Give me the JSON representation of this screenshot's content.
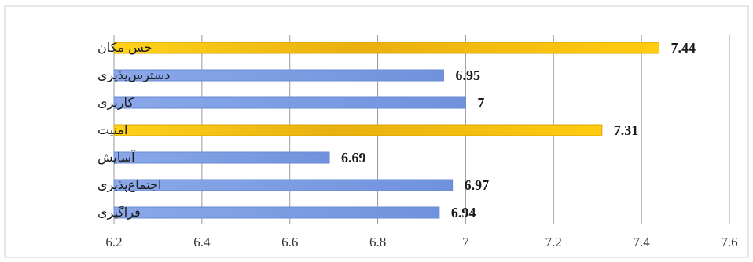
{
  "colors": {
    "highlight": "#f5c518",
    "normal": "#7e9ee0",
    "grid": "#9a9a9a"
  },
  "chart_data": {
    "type": "bar",
    "orientation": "horizontal",
    "categories": [
      "حس مکان",
      "دسترس‌پذیری",
      "کاربری",
      "امنیت",
      "آسایش",
      "اجتماع‌پذیری",
      "فراگیری"
    ],
    "values": [
      7.44,
      6.95,
      7,
      7.31,
      6.69,
      6.97,
      6.94
    ],
    "value_labels": [
      "7.44",
      "6.95",
      "7",
      "7.31",
      "6.69",
      "6.97",
      "6.94"
    ],
    "highlighted": [
      true,
      false,
      false,
      true,
      false,
      false,
      false
    ],
    "xlim": [
      6.2,
      7.6
    ],
    "xticks": [
      6.2,
      6.4,
      6.6,
      6.8,
      7,
      7.2,
      7.4,
      7.6
    ],
    "xtick_labels": [
      "6.2",
      "6.4",
      "6.6",
      "6.8",
      "7",
      "7.2",
      "7.4",
      "7.6"
    ],
    "grid": "vertical",
    "legend": "none",
    "title": "",
    "xlabel": "",
    "ylabel": ""
  }
}
